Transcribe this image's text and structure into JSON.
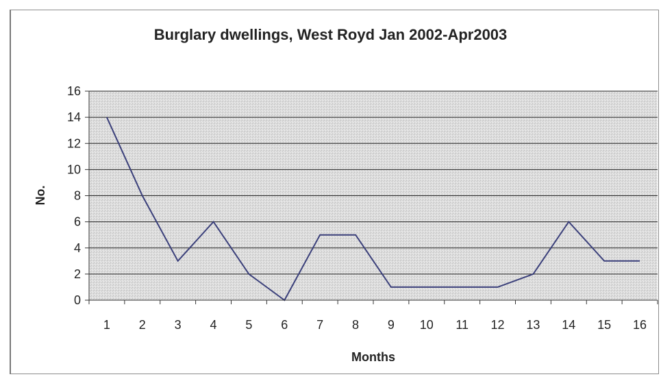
{
  "chart_data": {
    "type": "line",
    "title": "Burglary dwellings, West Royd Jan 2002-Apr2003",
    "xlabel": "Months",
    "ylabel": "No.",
    "categories": [
      "1",
      "2",
      "3",
      "4",
      "5",
      "6",
      "7",
      "8",
      "9",
      "10",
      "11",
      "12",
      "13",
      "14",
      "15",
      "16"
    ],
    "series": [
      {
        "values": [
          14,
          8,
          3,
          6,
          2,
          0,
          5,
          5,
          1,
          1,
          1,
          1,
          2,
          6,
          3,
          3
        ]
      }
    ],
    "ylim": [
      0,
      16
    ],
    "yticks": [
      "0",
      "2",
      "4",
      "6",
      "8",
      "10",
      "12",
      "14",
      "16"
    ],
    "grid": true,
    "legend": "none",
    "colors": {
      "line": "#3a3f7a",
      "plot_bg": "#d9d9d9",
      "grid": "#222222"
    }
  }
}
